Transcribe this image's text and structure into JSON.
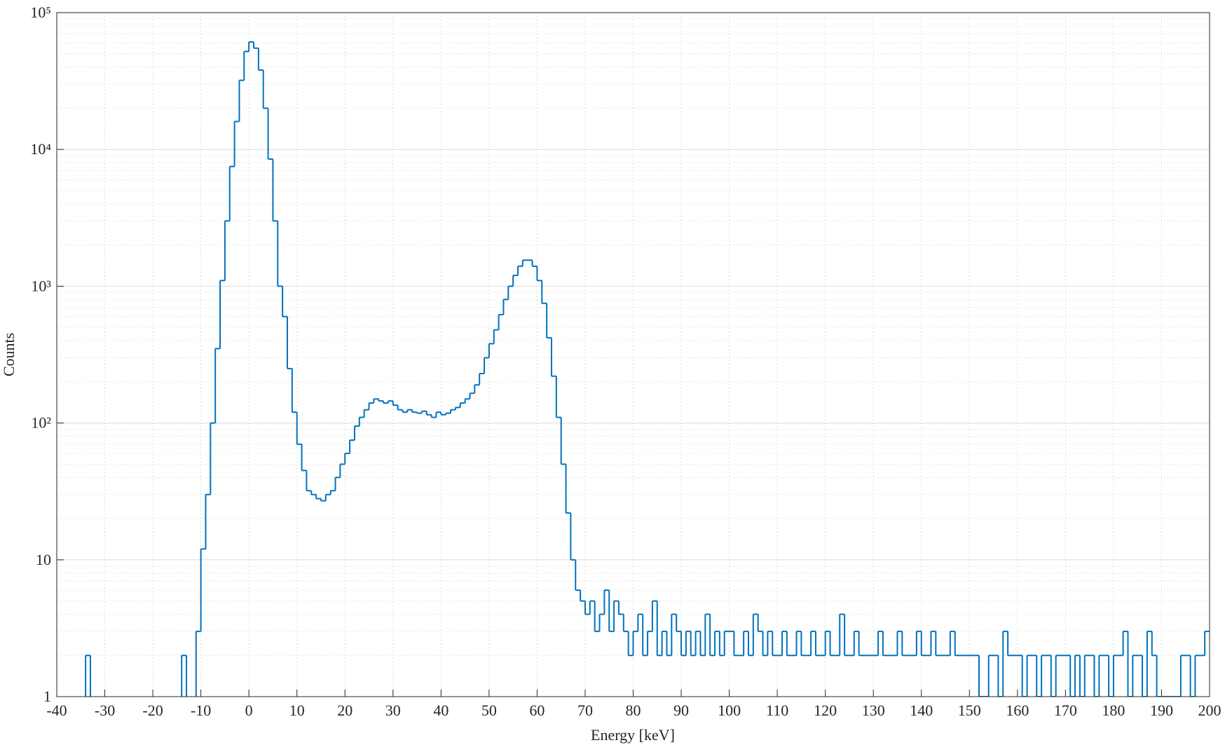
{
  "chart_data": {
    "type": "histogram",
    "x_label": "Energy [keV]",
    "y_label": "Counts",
    "color": "#0072BD",
    "log_y": true,
    "grid": true,
    "minor_grid": true,
    "xlim": [
      -40,
      200
    ],
    "xticks": [
      -40,
      -30,
      -20,
      -10,
      0,
      10,
      20,
      30,
      40,
      50,
      60,
      70,
      80,
      90,
      100,
      110,
      120,
      130,
      140,
      150,
      160,
      170,
      180,
      190,
      200
    ],
    "ylim": [
      1,
      100000
    ],
    "yticks": [
      1,
      10,
      {
        "value": 100,
        "label": "10²"
      },
      {
        "value": 1000,
        "label": "10³"
      },
      {
        "value": 10000,
        "label": "10⁴"
      },
      {
        "value": 100000,
        "label": "10⁵"
      }
    ],
    "bins": [
      -40,
      -39,
      -38,
      -37,
      -36,
      -35,
      -34,
      -33,
      -32,
      -31,
      -30,
      -29,
      -28,
      -27,
      -26,
      -25,
      -24,
      -23,
      -22,
      -21,
      -20,
      -19,
      -18,
      -17,
      -16,
      -15,
      -14,
      -13,
      -12,
      -11,
      -10,
      -9,
      -8,
      -7,
      -6,
      -5,
      -4,
      -3,
      -2,
      -1,
      0,
      1,
      2,
      3,
      4,
      5,
      6,
      7,
      8,
      9,
      10,
      11,
      12,
      13,
      14,
      15,
      16,
      17,
      18,
      19,
      20,
      21,
      22,
      23,
      24,
      25,
      26,
      27,
      28,
      29,
      30,
      31,
      32,
      33,
      34,
      35,
      36,
      37,
      38,
      39,
      40,
      41,
      42,
      43,
      44,
      45,
      46,
      47,
      48,
      49,
      50,
      51,
      52,
      53,
      54,
      55,
      56,
      57,
      58,
      59,
      60,
      61,
      62,
      63,
      64,
      65,
      66,
      67,
      68,
      69,
      70,
      71,
      72,
      73,
      74,
      75,
      76,
      77,
      78,
      79,
      80,
      81,
      82,
      83,
      84,
      85,
      86,
      87,
      88,
      89,
      90,
      91,
      92,
      93,
      94,
      95,
      96,
      97,
      98,
      99,
      100,
      101,
      102,
      103,
      104,
      105,
      106,
      107,
      108,
      109,
      110,
      111,
      112,
      113,
      114,
      115,
      116,
      117,
      118,
      119,
      120,
      121,
      122,
      123,
      124,
      125,
      126,
      127,
      128,
      129,
      130,
      131,
      132,
      133,
      134,
      135,
      136,
      137,
      138,
      139,
      140,
      141,
      142,
      143,
      144,
      145,
      146,
      147,
      148,
      149,
      150,
      151,
      152,
      153,
      154,
      155,
      156,
      157,
      158,
      159,
      160,
      161,
      162,
      163,
      164,
      165,
      166,
      167,
      168,
      169,
      170,
      171,
      172,
      173,
      174,
      175,
      176,
      177,
      178,
      179,
      180,
      181,
      182,
      183,
      184,
      185,
      186,
      187,
      188,
      189,
      190,
      191,
      192,
      193,
      194,
      195,
      196,
      197,
      198,
      199,
      200
    ],
    "values": [
      0,
      0,
      0,
      0,
      0,
      0,
      2,
      0,
      0,
      0,
      0,
      0,
      0,
      0,
      0,
      0,
      0,
      0,
      0,
      0,
      0,
      0,
      0,
      0,
      0,
      0,
      2,
      0,
      0,
      3,
      12,
      30,
      100,
      350,
      1100,
      3000,
      7500,
      16000,
      32000,
      52000,
      61000,
      55000,
      38000,
      20000,
      8500,
      3000,
      1000,
      600,
      250,
      120,
      70,
      45,
      32,
      30,
      28,
      27,
      30,
      32,
      40,
      50,
      60,
      75,
      95,
      110,
      125,
      140,
      150,
      145,
      140,
      145,
      135,
      125,
      120,
      125,
      120,
      118,
      122,
      115,
      110,
      120,
      115,
      118,
      125,
      130,
      140,
      150,
      165,
      190,
      230,
      300,
      380,
      480,
      620,
      800,
      1000,
      1200,
      1400,
      1550,
      1550,
      1400,
      1100,
      750,
      420,
      220,
      110,
      50,
      22,
      10,
      6,
      5,
      4,
      5,
      3,
      4,
      6,
      3,
      5,
      4,
      3,
      2,
      3,
      4,
      2,
      3,
      5,
      2,
      3,
      2,
      4,
      3,
      2,
      3,
      2,
      3,
      2,
      4,
      2,
      3,
      2,
      3,
      3,
      2,
      2,
      3,
      2,
      4,
      3,
      2,
      3,
      2,
      2,
      3,
      2,
      2,
      3,
      2,
      2,
      3,
      2,
      2,
      3,
      2,
      2,
      4,
      2,
      2,
      3,
      2,
      2,
      2,
      2,
      3,
      2,
      2,
      2,
      3,
      2,
      2,
      2,
      3,
      2,
      2,
      3,
      2,
      2,
      2,
      3,
      2,
      2,
      2,
      2,
      2,
      1,
      1,
      2,
      2,
      1,
      3,
      2,
      2,
      2,
      1,
      2,
      2,
      1,
      2,
      2,
      1,
      2,
      2,
      2,
      1,
      2,
      1,
      2,
      2,
      1,
      2,
      2,
      1,
      2,
      2,
      3,
      1,
      2,
      2,
      1,
      3,
      2,
      1,
      1,
      1,
      1,
      1,
      2,
      2,
      1,
      2,
      2,
      3
    ]
  }
}
